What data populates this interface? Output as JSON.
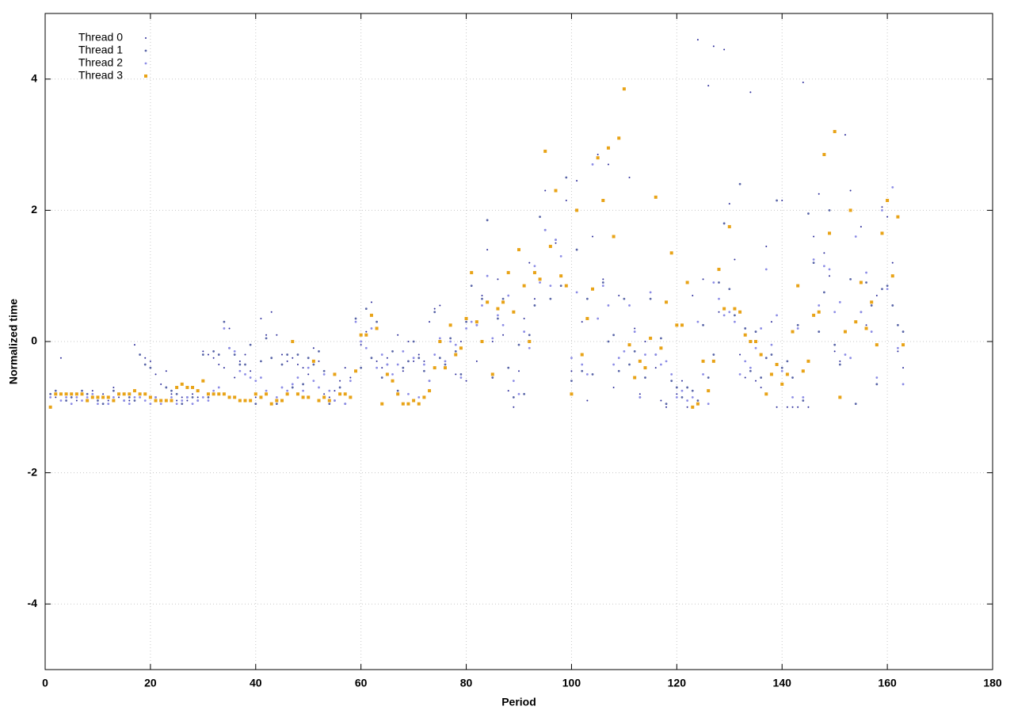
{
  "chart_data": {
    "type": "scatter",
    "xlabel": "Period",
    "ylabel": "Normalized time",
    "xlim": [
      0,
      180
    ],
    "ylim": [
      -5,
      5
    ],
    "xticks": [
      0,
      20,
      40,
      60,
      80,
      100,
      120,
      140,
      160,
      180
    ],
    "yticks": [
      -4,
      -2,
      0,
      2,
      4
    ],
    "grid": true,
    "legend": "top-left",
    "x": [
      1,
      2,
      3,
      4,
      5,
      6,
      7,
      8,
      9,
      10,
      11,
      12,
      13,
      14,
      15,
      16,
      17,
      18,
      19,
      20,
      21,
      22,
      23,
      24,
      25,
      26,
      27,
      28,
      29,
      30,
      31,
      32,
      33,
      34,
      35,
      36,
      37,
      38,
      39,
      40,
      41,
      42,
      43,
      44,
      45,
      46,
      47,
      48,
      49,
      50,
      51,
      52,
      53,
      54,
      55,
      56,
      57,
      58,
      59,
      60,
      61,
      62,
      63,
      64,
      65,
      66,
      67,
      68,
      69,
      70,
      71,
      72,
      73,
      74,
      75,
      76,
      77,
      78,
      79,
      80,
      81,
      82,
      83,
      84,
      85,
      86,
      87,
      88,
      89,
      90,
      91,
      92,
      93,
      94,
      95,
      96,
      97,
      98,
      99,
      100,
      101,
      102,
      103,
      104,
      105,
      106,
      107,
      108,
      109,
      110,
      111,
      112,
      113,
      114,
      115,
      116,
      117,
      118,
      119,
      120,
      121,
      122,
      123,
      124,
      125,
      126,
      127,
      128,
      129,
      130,
      131,
      132,
      133,
      134,
      135,
      136,
      137,
      138,
      139,
      140,
      141,
      142,
      143,
      144,
      145,
      146,
      147,
      148,
      149,
      150,
      151,
      152,
      153,
      154,
      155,
      156,
      157,
      158,
      159,
      160,
      161,
      162,
      163
    ],
    "series": [
      {
        "name": "Thread 0",
        "color": "#2a2a9a",
        "values": [
          -0.8,
          -0.85,
          -0.25,
          -0.9,
          -0.85,
          -0.9,
          -0.8,
          -0.9,
          -0.75,
          -0.95,
          -0.8,
          -0.9,
          -0.7,
          -0.85,
          -0.8,
          -0.9,
          -0.05,
          -0.2,
          -0.25,
          -0.3,
          -0.5,
          -0.65,
          -0.45,
          -0.8,
          -0.9,
          -0.85,
          -0.9,
          -0.8,
          -0.85,
          -0.15,
          -0.2,
          -0.25,
          -0.35,
          -0.4,
          0.2,
          -0.55,
          -0.3,
          -0.2,
          -0.45,
          -0.85,
          0.35,
          0.1,
          0.45,
          0.1,
          -0.2,
          -0.3,
          -0.25,
          -0.35,
          -0.4,
          -0.5,
          -0.1,
          -0.3,
          -0.8,
          -0.85,
          -0.75,
          -0.6,
          -0.4,
          -0.55,
          0.3,
          -0.05,
          0.15,
          0.6,
          -0.3,
          -0.4,
          -0.25,
          -0.15,
          0.1,
          -0.45,
          0.0,
          -0.3,
          -0.2,
          -0.3,
          0.3,
          0.5,
          0.55,
          -0.3,
          0.05,
          -0.5,
          0.0,
          -0.6,
          0.3,
          -0.3,
          0.7,
          1.4,
          0.0,
          0.95,
          0.1,
          -0.75,
          -1.0,
          -0.45,
          0.35,
          1.2,
          0.65,
          1.9,
          2.3,
          0.85,
          1.5,
          1.3,
          2.15,
          -0.45,
          2.45,
          0.3,
          -0.9,
          1.6,
          2.85,
          0.95,
          2.7,
          -0.7,
          0.7,
          0.65,
          2.5,
          0.2,
          -0.8,
          0.0,
          0.75,
          -0.4,
          -0.9,
          -1.0,
          -0.5,
          -0.8,
          -0.6,
          -1.0,
          0.7,
          4.6,
          0.95,
          3.9,
          4.5,
          0.45,
          4.45,
          2.1,
          1.25,
          -0.2,
          -0.55,
          3.8,
          -0.6,
          -0.7,
          1.45,
          0.3,
          -1.0,
          2.15,
          -1.0,
          -1.0,
          -1.0,
          3.95,
          -1.0,
          1.6,
          2.25,
          1.35,
          1.0,
          -0.15,
          -0.3,
          3.15,
          2.3,
          -0.95,
          1.75,
          0.25,
          0.15,
          0.7,
          2.05,
          1.9,
          1.2,
          -0.15,
          -0.4
        ]
      },
      {
        "name": "Thread 1",
        "color": "#5a66a8",
        "values": [
          -0.8,
          -0.75,
          -0.8,
          -0.9,
          -0.85,
          -0.8,
          -0.75,
          -0.8,
          -0.85,
          -0.9,
          -0.95,
          -0.85,
          -0.75,
          -0.8,
          -0.9,
          -0.85,
          -0.9,
          -0.2,
          -0.35,
          -0.4,
          -0.85,
          -0.9,
          -0.7,
          -0.75,
          -0.8,
          -0.95,
          -0.85,
          -0.85,
          -0.9,
          -0.2,
          -0.85,
          -0.15,
          -0.2,
          0.3,
          -0.1,
          -0.2,
          -0.35,
          -0.35,
          -0.05,
          -0.95,
          -0.3,
          0.05,
          -0.25,
          -0.95,
          -0.35,
          -0.2,
          -0.7,
          -0.2,
          -0.65,
          -0.25,
          -0.35,
          -0.15,
          -0.45,
          -0.95,
          -0.9,
          -0.7,
          -0.95,
          -0.85,
          0.35,
          -0.4,
          0.5,
          -0.25,
          0.3,
          -0.55,
          -0.35,
          -0.15,
          -0.75,
          -0.4,
          -0.3,
          0.0,
          -0.25,
          -0.45,
          -0.6,
          0.45,
          -0.25,
          -0.35,
          0.05,
          -0.15,
          -0.5,
          0.3,
          0.85,
          0.25,
          0.65,
          1.85,
          -0.55,
          0.35,
          0.65,
          -0.4,
          -0.85,
          -0.05,
          -0.8,
          0.1,
          0.55,
          1.9,
          1.7,
          0.65,
          1.55,
          0.85,
          2.5,
          -0.6,
          1.4,
          -0.45,
          0.65,
          -0.5,
          2.8,
          0.9,
          0.0,
          0.1,
          -0.45,
          0.65,
          -0.35,
          -0.15,
          -0.85,
          -0.55,
          0.65,
          -0.2,
          0.05,
          -0.95,
          -0.6,
          -0.7,
          -0.85,
          -0.7,
          -0.75,
          -0.9,
          0.25,
          -0.55,
          -0.2,
          0.9,
          1.8,
          0.8,
          0.4,
          2.4,
          0.2,
          -0.45,
          0.15,
          -0.55,
          -0.25,
          -0.2,
          2.15,
          -0.4,
          -0.3,
          -0.55,
          0.25,
          -0.9,
          1.95,
          1.2,
          0.15,
          0.75,
          2.0,
          -0.05,
          -0.35,
          0.15,
          0.95,
          -0.95,
          0.45,
          0.9,
          0.55,
          -0.65,
          0.8,
          0.85,
          0.55,
          0.25,
          0.15
        ]
      },
      {
        "name": "Thread 2",
        "color": "#8c8ce6",
        "values": [
          -0.85,
          -0.8,
          -0.9,
          -0.85,
          -0.95,
          -0.85,
          -0.9,
          -0.85,
          -0.8,
          -0.95,
          -0.85,
          -0.95,
          -0.85,
          -0.8,
          -0.9,
          -0.95,
          -0.85,
          -0.85,
          -0.9,
          -0.95,
          -0.85,
          -0.95,
          -0.9,
          -0.85,
          -0.95,
          -0.9,
          -0.85,
          -0.95,
          -0.9,
          -0.85,
          -0.9,
          -0.75,
          -0.7,
          0.2,
          -0.1,
          -0.15,
          -0.45,
          -0.5,
          -0.55,
          -0.6,
          -0.55,
          -0.75,
          -0.95,
          -0.85,
          -0.7,
          -0.75,
          -0.65,
          -0.55,
          -0.75,
          -0.4,
          -0.6,
          -0.7,
          -0.5,
          -0.75,
          -0.9,
          -0.8,
          -0.95,
          -0.6,
          0.3,
          0.0,
          -0.1,
          0.2,
          -0.4,
          -0.2,
          -0.35,
          -0.5,
          -0.35,
          -0.15,
          -0.8,
          -0.25,
          -0.85,
          -0.35,
          -0.6,
          -0.2,
          0.05,
          -0.3,
          0.0,
          -0.05,
          -0.55,
          0.2,
          0.3,
          0.25,
          0.55,
          1.0,
          0.05,
          0.4,
          0.25,
          0.7,
          -0.6,
          -0.8,
          0.15,
          -0.1,
          1.15,
          0.9,
          1.7,
          0.85,
          1.55,
          1.3,
          0.85,
          -0.25,
          0.75,
          -0.35,
          -0.5,
          2.7,
          0.35,
          0.85,
          0.55,
          -0.35,
          -0.25,
          -0.15,
          0.55,
          0.15,
          -0.85,
          -0.2,
          0.75,
          -0.2,
          -0.35,
          -0.3,
          -0.5,
          -0.85,
          -0.75,
          -0.9,
          -0.85,
          0.3,
          -0.5,
          -0.95,
          0.9,
          0.65,
          0.4,
          0.45,
          0.3,
          -0.5,
          -0.3,
          -0.4,
          -0.1,
          0.2,
          1.1,
          -0.05,
          0.4,
          -0.45,
          -0.5,
          -0.85,
          0.2,
          -0.85,
          -0.3,
          1.25,
          0.55,
          1.15,
          1.1,
          0.45,
          0.6,
          -0.2,
          -0.25,
          1.6,
          0.45,
          1.05,
          0.15,
          -0.55,
          2.0,
          0.8,
          2.35,
          -0.1,
          -0.65
        ]
      },
      {
        "name": "Thread 3",
        "color": "#e8a317",
        "values": [
          -1.0,
          -0.8,
          -0.8,
          -0.8,
          -0.8,
          -0.8,
          -0.8,
          -0.9,
          -0.85,
          -0.85,
          -0.85,
          -0.85,
          -0.9,
          -0.8,
          -0.8,
          -0.8,
          -0.75,
          -0.8,
          -0.8,
          -0.85,
          -0.9,
          -0.9,
          -0.9,
          -0.9,
          -0.7,
          -0.65,
          -0.7,
          -0.7,
          -0.75,
          -0.6,
          -0.8,
          -0.8,
          -0.8,
          -0.8,
          -0.85,
          -0.85,
          -0.9,
          -0.9,
          -0.9,
          -0.8,
          -0.85,
          -0.8,
          -0.95,
          -0.9,
          -0.9,
          -0.8,
          0.0,
          -0.8,
          -0.85,
          -0.85,
          -0.3,
          -0.9,
          -0.85,
          -0.9,
          -0.5,
          -0.8,
          -0.8,
          -0.85,
          -0.45,
          0.1,
          0.1,
          0.4,
          0.2,
          -0.95,
          -0.5,
          -0.6,
          -0.8,
          -0.95,
          -0.95,
          -0.9,
          -0.95,
          -0.85,
          -0.75,
          -0.4,
          0.0,
          -0.4,
          0.25,
          -0.2,
          -0.1,
          0.35,
          1.05,
          0.3,
          0.0,
          0.6,
          -0.5,
          0.5,
          0.6,
          1.05,
          0.45,
          1.4,
          0.85,
          0.0,
          1.05,
          0.95,
          2.9,
          1.45,
          2.3,
          1.0,
          0.85,
          -0.8,
          2.0,
          -0.2,
          0.35,
          0.8,
          2.8,
          2.15,
          2.95,
          1.6,
          3.1,
          3.85,
          -0.05,
          -0.55,
          -0.3,
          -0.4,
          0.05,
          2.2,
          -0.1,
          0.6,
          1.35,
          0.25,
          0.25,
          0.9,
          -1.0,
          -0.95,
          -0.3,
          -0.75,
          -0.3,
          1.1,
          0.5,
          1.75,
          0.5,
          0.45,
          0.1,
          0.0,
          0.0,
          -0.2,
          -0.8,
          -0.5,
          -0.35,
          -0.65,
          -0.5,
          0.15,
          0.85,
          -0.45,
          -0.3,
          0.4,
          0.45,
          2.85,
          1.65,
          3.2,
          -0.85,
          0.15,
          2.0,
          0.3,
          0.9,
          0.2,
          0.6,
          -0.05,
          1.65,
          2.15,
          1.0,
          1.9,
          -0.05
        ]
      }
    ]
  }
}
